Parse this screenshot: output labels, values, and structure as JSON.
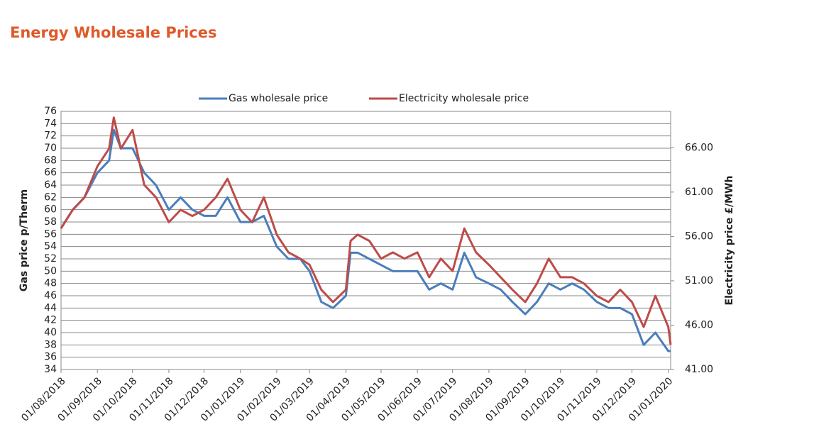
{
  "chart_data": {
    "type": "line",
    "title": "Energy Wholesale Prices",
    "y_label": "Gas price p/Therm",
    "y2_label": "Electricity price £/MWh",
    "x": [
      "01/08/2018",
      "11/08/2018",
      "21/08/2018",
      "01/09/2018",
      "11/09/2018",
      "15/09/2018",
      "21/09/2018",
      "01/10/2018",
      "11/10/2018",
      "21/10/2018",
      "01/11/2018",
      "11/11/2018",
      "21/11/2018",
      "01/12/2018",
      "11/12/2018",
      "21/12/2018",
      "01/01/2019",
      "11/01/2019",
      "21/01/2019",
      "01/02/2019",
      "11/02/2019",
      "21/02/2019",
      "01/03/2019",
      "11/03/2019",
      "21/03/2019",
      "01/04/2019",
      "05/04/2019",
      "11/04/2019",
      "21/04/2019",
      "01/05/2019",
      "11/05/2019",
      "21/05/2019",
      "01/06/2019",
      "11/06/2019",
      "21/06/2019",
      "01/07/2019",
      "11/07/2019",
      "21/07/2019",
      "01/08/2019",
      "11/08/2019",
      "21/08/2019",
      "01/09/2019",
      "11/09/2019",
      "21/09/2019",
      "01/10/2019",
      "11/10/2019",
      "21/10/2019",
      "01/11/2019",
      "11/11/2019",
      "21/11/2019",
      "01/12/2019",
      "11/12/2019",
      "21/12/2019",
      "01/01/2020",
      "03/01/2020"
    ],
    "series": [
      {
        "name": "Gas wholesale price",
        "color": "#4a7ebb",
        "values": [
          57,
          60,
          62,
          66,
          68,
          73,
          70,
          70,
          66,
          64,
          60,
          62,
          60,
          59,
          59,
          62,
          58,
          58,
          59,
          54,
          52,
          52,
          50,
          45,
          44,
          46,
          53,
          53,
          52,
          51,
          50,
          50,
          50,
          47,
          48,
          47,
          53,
          49,
          48,
          47,
          45,
          43,
          45,
          48,
          47,
          48,
          47,
          45,
          44,
          44,
          43,
          38,
          40,
          37,
          37
        ]
      },
      {
        "name": "Electricity wholesale price",
        "color": "#be4b48",
        "axis": "y2",
        "values": [
          56.9,
          59,
          60.4,
          63.9,
          65.9,
          69.4,
          65.9,
          68,
          61.8,
          60.4,
          57.6,
          59,
          58.3,
          59,
          60.4,
          62.5,
          59,
          57.6,
          60.4,
          56.2,
          54.2,
          53.5,
          52.8,
          50,
          48.6,
          50,
          55.5,
          56.2,
          55.5,
          53.5,
          54.2,
          53.5,
          54.2,
          51.4,
          53.5,
          52.1,
          56.9,
          54.2,
          52.8,
          51.4,
          50,
          48.6,
          50.7,
          53.5,
          51.4,
          51.4,
          50.7,
          49.3,
          48.6,
          50,
          48.6,
          45.8,
          49.3,
          45.8,
          43.8
        ]
      }
    ],
    "xlim": [
      "01/08/2018",
      "03/01/2020"
    ],
    "xticks": [
      "01/08/2018",
      "01/09/2018",
      "01/10/2018",
      "01/11/2018",
      "01/12/2018",
      "01/01/2019",
      "01/02/2019",
      "01/03/2019",
      "01/04/2019",
      "01/05/2019",
      "01/06/2019",
      "01/07/2019",
      "01/08/2019",
      "01/09/2019",
      "01/10/2019",
      "01/11/2019",
      "01/12/2019",
      "01/01/2020"
    ],
    "ylim": [
      34,
      76
    ],
    "yticks": [
      34,
      36,
      38,
      40,
      42,
      44,
      46,
      48,
      50,
      52,
      54,
      56,
      58,
      60,
      62,
      64,
      66,
      68,
      70,
      72,
      74,
      76
    ],
    "y2lim": [
      41,
      70.1
    ],
    "y2ticks": [
      {
        "value": 41,
        "label": "41.00"
      },
      {
        "value": 46,
        "label": "46.00"
      },
      {
        "value": 51,
        "label": "51.00"
      },
      {
        "value": 56,
        "label": "56.00"
      },
      {
        "value": 61,
        "label": "61.00"
      },
      {
        "value": 66,
        "label": "66.00"
      }
    ],
    "grid": true,
    "legend": "top"
  }
}
